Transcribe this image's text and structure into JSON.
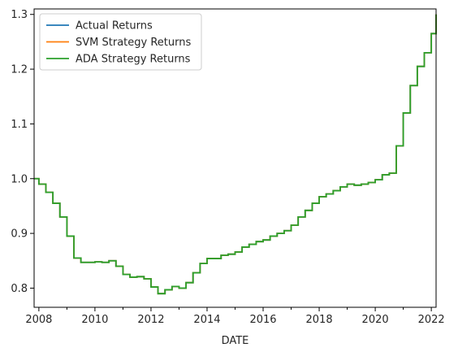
{
  "chart_data": {
    "type": "line",
    "xlabel": "DATE",
    "ylabel": "",
    "title": "",
    "xlim": [
      2007.83,
      2022.17
    ],
    "ylim": [
      0.765,
      1.31
    ],
    "x_ticks": [
      2008,
      2010,
      2012,
      2014,
      2016,
      2018,
      2020,
      2022
    ],
    "x_tick_labels": [
      "2008",
      "2010",
      "2012",
      "2014",
      "2016",
      "2018",
      "2020",
      "2022"
    ],
    "x_minor_ticks": [
      2009,
      2011,
      2013,
      2015,
      2017,
      2019,
      2021
    ],
    "y_ticks": [
      0.8,
      0.9,
      1.0,
      1.1,
      1.2,
      1.3
    ],
    "y_tick_labels": [
      "0.8",
      "0.9",
      "1.0",
      "1.1",
      "1.2",
      "1.3"
    ],
    "grid": false,
    "legend_position": "top-left",
    "series": [
      {
        "name": "Actual Returns",
        "color": "#1f77b4"
      },
      {
        "name": "SVM Strategy Returns",
        "color": "#ff7f0e"
      },
      {
        "name": "ADA Strategy Returns",
        "color": "#2ca02c"
      }
    ],
    "x": [
      2007.83,
      2008.0,
      2008.25,
      2008.5,
      2008.75,
      2009.0,
      2009.25,
      2009.5,
      2009.75,
      2010.0,
      2010.25,
      2010.5,
      2010.75,
      2011.0,
      2011.25,
      2011.5,
      2011.75,
      2012.0,
      2012.25,
      2012.5,
      2012.75,
      2013.0,
      2013.25,
      2013.5,
      2013.75,
      2014.0,
      2014.25,
      2014.5,
      2014.75,
      2015.0,
      2015.25,
      2015.5,
      2015.75,
      2016.0,
      2016.25,
      2016.5,
      2016.75,
      2017.0,
      2017.25,
      2017.5,
      2017.75,
      2018.0,
      2018.25,
      2018.5,
      2018.75,
      2019.0,
      2019.25,
      2019.5,
      2019.75,
      2020.0,
      2020.25,
      2020.5,
      2020.75,
      2021.0,
      2021.25,
      2021.5,
      2021.75,
      2022.0,
      2022.17
    ],
    "values": [
      1.0,
      0.99,
      0.975,
      0.955,
      0.93,
      0.895,
      0.855,
      0.847,
      0.847,
      0.848,
      0.847,
      0.85,
      0.84,
      0.825,
      0.82,
      0.821,
      0.817,
      0.802,
      0.79,
      0.797,
      0.803,
      0.8,
      0.81,
      0.828,
      0.845,
      0.854,
      0.854,
      0.86,
      0.862,
      0.866,
      0.875,
      0.88,
      0.885,
      0.888,
      0.895,
      0.9,
      0.905,
      0.915,
      0.93,
      0.942,
      0.955,
      0.967,
      0.972,
      0.978,
      0.985,
      0.99,
      0.988,
      0.99,
      0.993,
      0.998,
      1.007,
      1.01,
      1.06,
      1.12,
      1.17,
      1.205,
      1.23,
      1.265,
      1.3
    ]
  }
}
